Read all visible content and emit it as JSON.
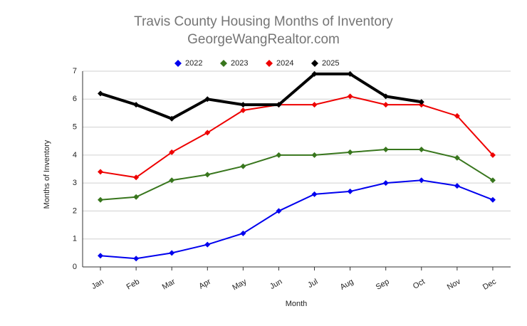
{
  "chart_data": {
    "type": "line",
    "title": "Travis County Housing Months of Inventory",
    "subtitle": "GeorgeWangRealtor.com",
    "x_label": "Month",
    "y_label": "Months of Inventory",
    "categories": [
      "Jan",
      "Feb",
      "Mar",
      "Apr",
      "May",
      "Jun",
      "Jul",
      "Aug",
      "Sep",
      "Oct",
      "Nov",
      "Dec"
    ],
    "series": [
      {
        "name": "2022",
        "color": "#0000ee",
        "linewidth": 2,
        "values": [
          0.4,
          0.3,
          0.5,
          0.8,
          1.2,
          2.0,
          2.6,
          2.7,
          3.0,
          3.1,
          2.9,
          2.4
        ]
      },
      {
        "name": "2023",
        "color": "#38761d",
        "linewidth": 2,
        "values": [
          2.4,
          2.5,
          3.1,
          3.3,
          3.6,
          4.0,
          4.0,
          4.1,
          4.2,
          4.2,
          3.9,
          3.1
        ]
      },
      {
        "name": "2024",
        "color": "#ee0000",
        "linewidth": 2,
        "values": [
          3.4,
          3.2,
          4.1,
          4.8,
          5.6,
          5.8,
          5.8,
          6.1,
          5.8,
          5.8,
          5.4,
          4.0
        ]
      },
      {
        "name": "2025",
        "color": "#000000",
        "linewidth": 4,
        "values": [
          6.2,
          5.8,
          5.3,
          6.0,
          5.8,
          5.8,
          6.9,
          6.9,
          6.1,
          5.9,
          null,
          null
        ]
      }
    ],
    "ylim": [
      0,
      7
    ],
    "yticks": [
      0,
      1,
      2,
      3,
      4,
      5,
      6,
      7
    ],
    "grid": true,
    "legend": "top"
  }
}
